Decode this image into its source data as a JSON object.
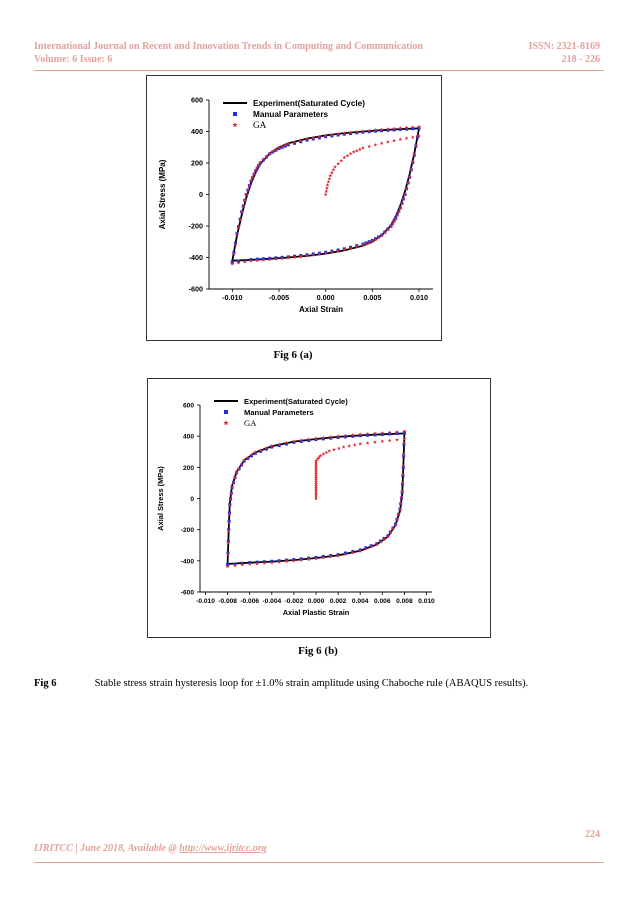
{
  "header": {
    "journal": "International Journal on Recent and Innovation Trends in Computing and Communication",
    "volume": "Volume: 6 Issue: 6",
    "issn": "ISSN: 2321-8169",
    "pages": "218 - 226"
  },
  "figures": [
    {
      "caption": "Fig 6 (a)",
      "chart_data": {
        "type": "line",
        "xlabel": "Axial Strain",
        "ylabel": "Axial Stress (MPa)",
        "xlim": [
          -0.0125,
          0.0115
        ],
        "ylim": [
          -600,
          600
        ],
        "xticks": [
          -0.01,
          -0.005,
          0.0,
          0.005,
          0.01
        ],
        "xtick_labels": [
          "-0.010",
          "-0.005",
          "0.000",
          "0.005",
          "0.010"
        ],
        "yticks": [
          -600,
          -400,
          -200,
          0,
          200,
          400,
          600
        ],
        "ytick_labels": [
          "-600",
          "-400",
          "-200",
          "0",
          "200",
          "400",
          "600"
        ],
        "legend_position": "top-left",
        "series": [
          {
            "name": "Experiment(Saturated Cycle)",
            "marker": "line",
            "color": "#000000",
            "upper": [
              [
                -0.01,
                -420
              ],
              [
                -0.0095,
                -260
              ],
              [
                -0.009,
                -130
              ],
              [
                -0.0085,
                -20
              ],
              [
                -0.008,
                70
              ],
              [
                -0.0075,
                140
              ],
              [
                -0.007,
                195
              ],
              [
                -0.006,
                260
              ],
              [
                -0.005,
                300
              ],
              [
                -0.004,
                325
              ],
              [
                -0.002,
                355
              ],
              [
                0.0,
                375
              ],
              [
                0.002,
                390
              ],
              [
                0.004,
                400
              ],
              [
                0.006,
                408
              ],
              [
                0.008,
                415
              ],
              [
                0.01,
                420
              ]
            ],
            "lower": [
              [
                0.01,
                420
              ],
              [
                0.0095,
                260
              ],
              [
                0.009,
                130
              ],
              [
                0.0085,
                20
              ],
              [
                0.008,
                -70
              ],
              [
                0.0075,
                -140
              ],
              [
                0.007,
                -195
              ],
              [
                0.006,
                -260
              ],
              [
                0.005,
                -300
              ],
              [
                0.004,
                -325
              ],
              [
                0.002,
                -355
              ],
              [
                0.0,
                -375
              ],
              [
                -0.002,
                -390
              ],
              [
                -0.004,
                -400
              ],
              [
                -0.006,
                -408
              ],
              [
                -0.008,
                -415
              ],
              [
                -0.01,
                -420
              ]
            ]
          },
          {
            "name": "Manual Parameters",
            "marker": "square",
            "color": "#1f2ee0",
            "upper": [
              [
                -0.01,
                -430
              ],
              [
                -0.0095,
                -250
              ],
              [
                -0.009,
                -110
              ],
              [
                -0.0085,
                0
              ],
              [
                -0.008,
                85
              ],
              [
                -0.0075,
                150
              ],
              [
                -0.007,
                200
              ],
              [
                -0.006,
                258
              ],
              [
                -0.005,
                292
              ],
              [
                -0.004,
                315
              ],
              [
                -0.002,
                345
              ],
              [
                0.0,
                367
              ],
              [
                0.002,
                383
              ],
              [
                0.004,
                396
              ],
              [
                0.006,
                405
              ],
              [
                0.008,
                413
              ],
              [
                0.01,
                420
              ]
            ],
            "lower": [
              [
                0.01,
                420
              ],
              [
                0.0095,
                250
              ],
              [
                0.009,
                110
              ],
              [
                0.0085,
                0
              ],
              [
                0.008,
                -85
              ],
              [
                0.0075,
                -150
              ],
              [
                0.007,
                -200
              ],
              [
                0.006,
                -258
              ],
              [
                0.005,
                -292
              ],
              [
                0.004,
                -315
              ],
              [
                0.002,
                -345
              ],
              [
                0.0,
                -367
              ],
              [
                -0.002,
                -383
              ],
              [
                -0.004,
                -396
              ],
              [
                -0.006,
                -405
              ],
              [
                -0.008,
                -413
              ],
              [
                -0.01,
                -430
              ]
            ]
          },
          {
            "name": "GA",
            "marker": "star",
            "color": "#e0242a",
            "upper": [
              [
                -0.01,
                -440
              ],
              [
                -0.0095,
                -255
              ],
              [
                -0.009,
                -112
              ],
              [
                -0.0085,
                0
              ],
              [
                -0.008,
                88
              ],
              [
                -0.0075,
                155
              ],
              [
                -0.007,
                205
              ],
              [
                -0.006,
                262
              ],
              [
                -0.005,
                298
              ],
              [
                -0.004,
                322
              ],
              [
                -0.002,
                352
              ],
              [
                0.0,
                373
              ],
              [
                0.002,
                390
              ],
              [
                0.004,
                403
              ],
              [
                0.006,
                413
              ],
              [
                0.008,
                422
              ],
              [
                0.01,
                430
              ]
            ],
            "lower": [
              [
                0.01,
                430
              ],
              [
                0.0095,
                255
              ],
              [
                0.009,
                112
              ],
              [
                0.0085,
                0
              ],
              [
                0.008,
                -88
              ],
              [
                0.0075,
                -155
              ],
              [
                0.007,
                -205
              ],
              [
                0.006,
                -262
              ],
              [
                0.005,
                -298
              ],
              [
                0.004,
                -322
              ],
              [
                0.002,
                -352
              ],
              [
                0.0,
                -373
              ],
              [
                -0.002,
                -390
              ],
              [
                -0.004,
                -403
              ],
              [
                -0.006,
                -413
              ],
              [
                -0.008,
                -422
              ],
              [
                -0.01,
                -440
              ]
            ],
            "initial": [
              [
                0.0,
                0
              ],
              [
                0.0002,
                60
              ],
              [
                0.0005,
                120
              ],
              [
                0.001,
                175
              ],
              [
                0.002,
                235
              ],
              [
                0.003,
                270
              ],
              [
                0.004,
                295
              ],
              [
                0.006,
                325
              ],
              [
                0.008,
                350
              ],
              [
                0.01,
                370
              ]
            ]
          }
        ]
      }
    },
    {
      "caption": "Fig 6 (b)",
      "chart_data": {
        "type": "line",
        "xlabel": "Axial Plastic Strain",
        "ylabel": "Axial Stress (MPa)",
        "xlim": [
          -0.0105,
          0.0105
        ],
        "ylim": [
          -600,
          600
        ],
        "xticks": [
          -0.01,
          -0.008,
          -0.006,
          -0.004,
          -0.002,
          0.0,
          0.002,
          0.004,
          0.006,
          0.008,
          0.01
        ],
        "xtick_labels": [
          "-0.010",
          "-0.008",
          "-0.006",
          "-0.004",
          "-0.002",
          "0.000",
          "0.002",
          "0.004",
          "0.006",
          "0.008",
          "0.010"
        ],
        "yticks": [
          -600,
          -400,
          -200,
          0,
          200,
          400,
          600
        ],
        "ytick_labels": [
          "-600",
          "-400",
          "-200",
          "0",
          "200",
          "400",
          "600"
        ],
        "legend_position": "top-left",
        "series": [
          {
            "name": "Experiment(Saturated Cycle)",
            "marker": "line",
            "color": "#000000",
            "upper": [
              [
                -0.008,
                -420
              ],
              [
                -0.0079,
                -200
              ],
              [
                -0.0078,
                -30
              ],
              [
                -0.0076,
                80
              ],
              [
                -0.0072,
                170
              ],
              [
                -0.0065,
                245
              ],
              [
                -0.0055,
                295
              ],
              [
                -0.004,
                335
              ],
              [
                -0.002,
                365
              ],
              [
                0.0,
                382
              ],
              [
                0.002,
                395
              ],
              [
                0.004,
                405
              ],
              [
                0.006,
                412
              ],
              [
                0.008,
                418
              ]
            ],
            "lower": [
              [
                0.008,
                418
              ],
              [
                0.0079,
                200
              ],
              [
                0.0078,
                30
              ],
              [
                0.0076,
                -80
              ],
              [
                0.0072,
                -170
              ],
              [
                0.0065,
                -245
              ],
              [
                0.0055,
                -295
              ],
              [
                0.004,
                -335
              ],
              [
                0.002,
                -365
              ],
              [
                0.0,
                -382
              ],
              [
                -0.002,
                -395
              ],
              [
                -0.004,
                -405
              ],
              [
                -0.006,
                -412
              ],
              [
                -0.008,
                -420
              ]
            ]
          },
          {
            "name": "Manual Parameters",
            "marker": "square",
            "color": "#1f2ee0",
            "upper": [
              [
                -0.008,
                -425
              ],
              [
                -0.0079,
                -200
              ],
              [
                -0.0078,
                -40
              ],
              [
                -0.0076,
                70
              ],
              [
                -0.0072,
                165
              ],
              [
                -0.0065,
                240
              ],
              [
                -0.0055,
                290
              ],
              [
                -0.004,
                330
              ],
              [
                -0.002,
                360
              ],
              [
                0.0,
                378
              ],
              [
                0.002,
                392
              ],
              [
                0.004,
                403
              ],
              [
                0.006,
                411
              ],
              [
                0.008,
                420
              ]
            ],
            "lower": [
              [
                0.008,
                420
              ],
              [
                0.0079,
                200
              ],
              [
                0.0078,
                40
              ],
              [
                0.0076,
                -70
              ],
              [
                0.0072,
                -165
              ],
              [
                0.0065,
                -240
              ],
              [
                0.0055,
                -290
              ],
              [
                0.004,
                -330
              ],
              [
                0.002,
                -360
              ],
              [
                0.0,
                -378
              ],
              [
                -0.002,
                -392
              ],
              [
                -0.004,
                -403
              ],
              [
                -0.006,
                -411
              ],
              [
                -0.008,
                -425
              ]
            ]
          },
          {
            "name": "GA",
            "marker": "star",
            "color": "#e0242a",
            "upper": [
              [
                -0.008,
                -435
              ],
              [
                -0.0079,
                -210
              ],
              [
                -0.0078,
                -45
              ],
              [
                -0.0076,
                70
              ],
              [
                -0.0072,
                168
              ],
              [
                -0.0065,
                245
              ],
              [
                -0.0055,
                297
              ],
              [
                -0.004,
                338
              ],
              [
                -0.002,
                368
              ],
              [
                0.0,
                386
              ],
              [
                0.002,
                400
              ],
              [
                0.004,
                412
              ],
              [
                0.006,
                421
              ],
              [
                0.008,
                430
              ]
            ],
            "lower": [
              [
                0.008,
                430
              ],
              [
                0.0079,
                210
              ],
              [
                0.0078,
                45
              ],
              [
                0.0076,
                -70
              ],
              [
                0.0072,
                -168
              ],
              [
                0.0065,
                -245
              ],
              [
                0.0055,
                -297
              ],
              [
                0.004,
                -338
              ],
              [
                0.002,
                -368
              ],
              [
                0.0,
                -386
              ],
              [
                -0.002,
                -400
              ],
              [
                -0.004,
                -412
              ],
              [
                -0.006,
                -421
              ],
              [
                -0.008,
                -435
              ]
            ],
            "initial": [
              [
                0.0,
                0
              ],
              [
                0.0,
                40
              ],
              [
                0.0,
                80
              ],
              [
                0.0,
                120
              ],
              [
                0.0,
                160
              ],
              [
                0.0,
                200
              ],
              [
                0.0,
                240
              ],
              [
                0.0004,
                275
              ],
              [
                0.0012,
                305
              ],
              [
                0.0025,
                330
              ],
              [
                0.004,
                350
              ],
              [
                0.006,
                367
              ],
              [
                0.008,
                382
              ]
            ]
          }
        ]
      }
    }
  ],
  "caption": {
    "label": "Fig 6",
    "text": "Stable stress strain hysteresis loop for ±1.0% strain amplitude using Chaboche rule (ABAQUS results)."
  },
  "footer": {
    "page_number": "224",
    "text": "IJRITCC | June 2018, Available @ ",
    "link": "http://www.ijritcc.org"
  }
}
